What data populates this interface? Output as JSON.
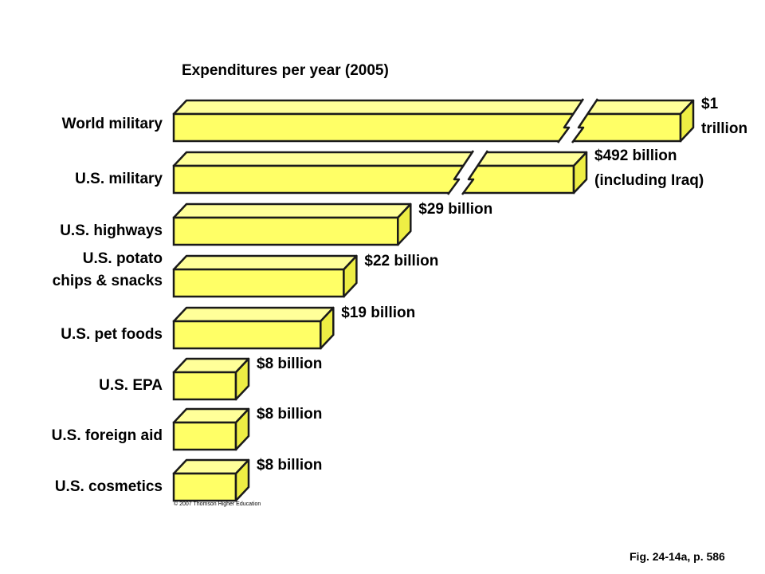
{
  "chart_data": {
    "type": "bar",
    "orientation": "horizontal",
    "title": "Expenditures per year (2005)",
    "categories": [
      "World military",
      "U.S. military",
      "U.S. highways",
      "U.S. potato\nchips & snacks",
      "U.S. pet foods",
      "U.S. EPA",
      "U.S. foreign aid",
      "U.S. cosmetics"
    ],
    "values_billions": [
      1000,
      492,
      29,
      22,
      19,
      8,
      8,
      8
    ],
    "value_labels": [
      "$1\ntrillion",
      "$492 billion\n(including Iraq)",
      "$29 billion",
      "$22 billion",
      "$19 billion",
      "$8 billion",
      "$8 billion",
      "$8 billion"
    ],
    "axis_breaks": [
      true,
      true,
      false,
      false,
      false,
      false,
      false,
      false
    ],
    "bar_color": "#ffff66",
    "bar_top_color": "#ffff99",
    "bar_side_color": "#eeee44"
  },
  "copyright": "© 2007 Thomson Higher Education",
  "figure_caption": "Fig. 24-14a, p. 586"
}
